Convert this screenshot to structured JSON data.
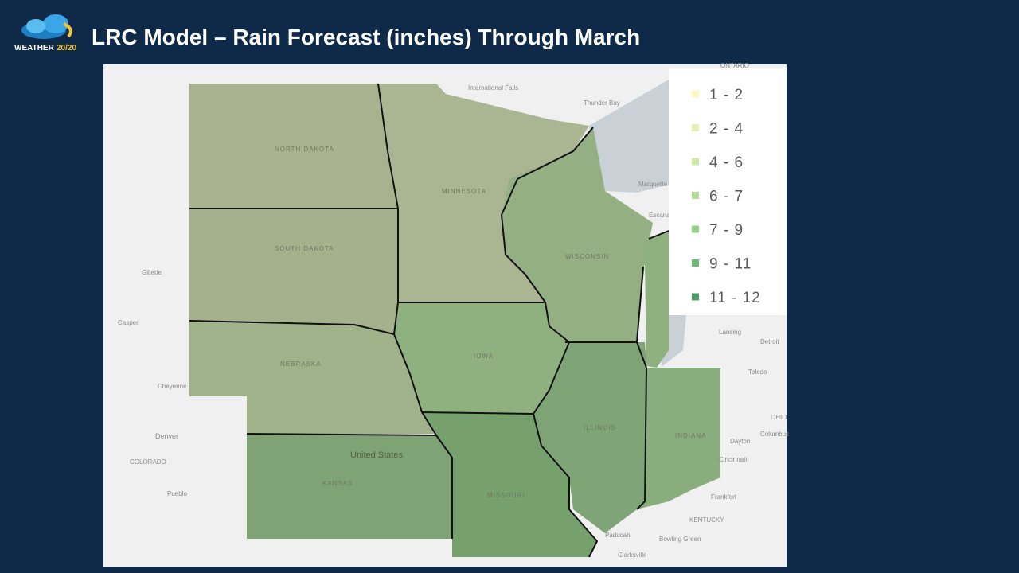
{
  "header": {
    "title": "LRC Model – Rain Forecast (inches) Through March",
    "logo_word": "WEATHER",
    "logo_number": "20/20"
  },
  "legend": {
    "items": [
      {
        "label": "1 - 2",
        "color": "#fbf8c4"
      },
      {
        "label": "2 - 4",
        "color": "#e8efb4"
      },
      {
        "label": "4 - 6",
        "color": "#d1e8aa"
      },
      {
        "label": "6 - 7",
        "color": "#b3dc98"
      },
      {
        "label": "7 - 9",
        "color": "#93cf86"
      },
      {
        "label": "9 - 11",
        "color": "#6cba74"
      },
      {
        "label": "11 - 12",
        "color": "#4a9c62"
      }
    ]
  },
  "map_labels": {
    "country": "United States",
    "ontario": "ONTARIO",
    "north_dakota": "NORTH DAKOTA",
    "south_dakota": "SOUTH DAKOTA",
    "nebraska": "NEBRASKA",
    "kansas": "KANSAS",
    "minnesota": "MINNESOTA",
    "iowa": "IOWA",
    "missouri": "MISSOURI",
    "wisconsin": "WISCONSIN",
    "illinois": "ILLINOIS",
    "indiana": "INDIANA",
    "kentucky": "KENTUCKY",
    "colorado": "COLORADO",
    "ohio": "OHIO",
    "international_falls": "International Falls",
    "thunder_bay": "Thunder Bay",
    "marquette": "Marquette",
    "escanaba": "Escanaba",
    "lansing": "Lansing",
    "detroit": "Detroit",
    "toledo": "Toledo",
    "columbus": "Columbus",
    "dayton": "Dayton",
    "cincinnati": "Cincinnati",
    "frankfort": "Frankfort",
    "bowling_green": "Bowling Green",
    "clarksville": "Clarksville",
    "paducah": "Paducah",
    "denver": "Denver",
    "cheyenne": "Cheyenne",
    "casper": "Casper",
    "gillette": "Gillette",
    "pueblo": "Pueblo"
  }
}
